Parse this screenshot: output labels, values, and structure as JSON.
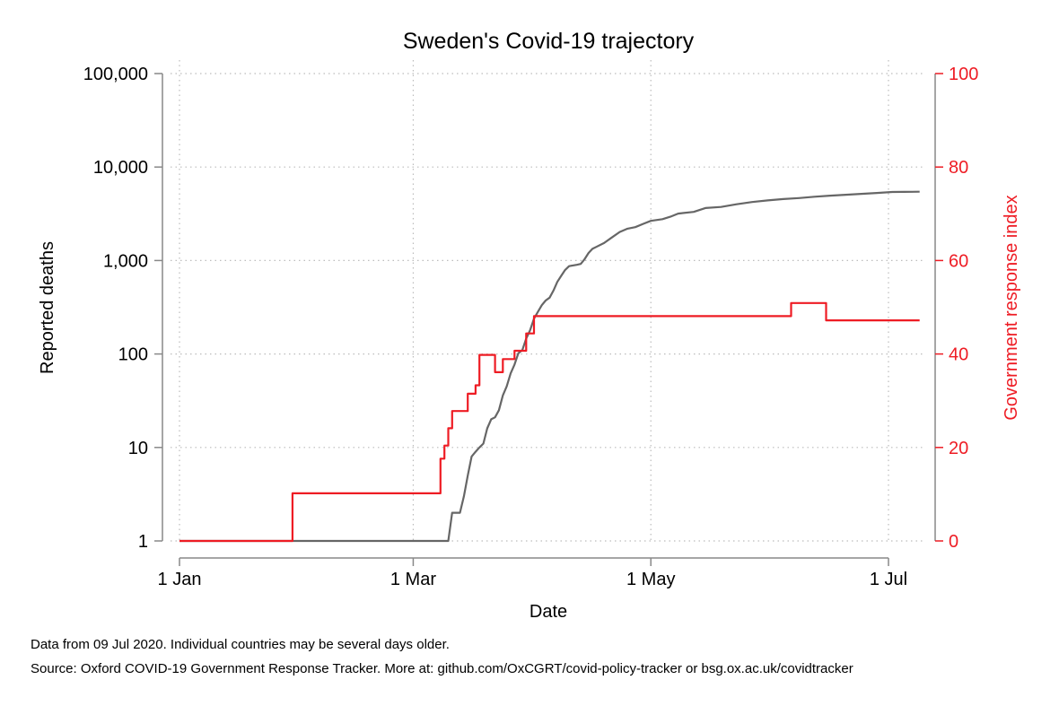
{
  "chart_data": {
    "type": "line",
    "title": "Sweden's Covid-19 trajectory",
    "xlabel": "Date",
    "ylabel": "Reported deaths",
    "ylabel_right": "Government response index",
    "x_ticks": [
      "1 Jan",
      "1 Mar",
      "1 May",
      "1 Jul"
    ],
    "x_tick_dates": [
      "2020-01-01",
      "2020-03-01",
      "2020-05-01",
      "2020-07-01"
    ],
    "x_range": [
      "2020-01-01",
      "2020-07-09"
    ],
    "y_left_scale": "log",
    "y_left_range": [
      1,
      100000
    ],
    "y_left_ticks": [
      1,
      10,
      100,
      1000,
      10000,
      100000
    ],
    "y_left_tick_labels": [
      "1",
      "10",
      "100",
      "1,000",
      "10,000",
      "100,000"
    ],
    "y_right_range": [
      0,
      100
    ],
    "y_right_ticks": [
      0,
      20,
      40,
      60,
      80,
      100
    ],
    "y_right_tick_labels": [
      "0",
      "20",
      "40",
      "60",
      "80",
      "100"
    ],
    "grid": "dotted",
    "series": [
      {
        "axis": "left",
        "color": "#666666",
        "points": [
          [
            "2020-01-01",
            1
          ],
          [
            "2020-03-10",
            1
          ],
          [
            "2020-03-11",
            2
          ],
          [
            "2020-03-13",
            2
          ],
          [
            "2020-03-14",
            3
          ],
          [
            "2020-03-15",
            5
          ],
          [
            "2020-03-16",
            8
          ],
          [
            "2020-03-17",
            9
          ],
          [
            "2020-03-18",
            10
          ],
          [
            "2020-03-19",
            11
          ],
          [
            "2020-03-20",
            16
          ],
          [
            "2020-03-21",
            20
          ],
          [
            "2020-03-22",
            21
          ],
          [
            "2020-03-23",
            25
          ],
          [
            "2020-03-24",
            36
          ],
          [
            "2020-03-25",
            45
          ],
          [
            "2020-03-26",
            62
          ],
          [
            "2020-03-27",
            77
          ],
          [
            "2020-03-28",
            102
          ],
          [
            "2020-03-29",
            110
          ],
          [
            "2020-03-30",
            146
          ],
          [
            "2020-03-31",
            180
          ],
          [
            "2020-04-01",
            239
          ],
          [
            "2020-04-02",
            282
          ],
          [
            "2020-04-03",
            333
          ],
          [
            "2020-04-04",
            373
          ],
          [
            "2020-04-05",
            401
          ],
          [
            "2020-04-06",
            477
          ],
          [
            "2020-04-07",
            591
          ],
          [
            "2020-04-08",
            687
          ],
          [
            "2020-04-09",
            793
          ],
          [
            "2020-04-10",
            870
          ],
          [
            "2020-04-12",
            899
          ],
          [
            "2020-04-13",
            919
          ],
          [
            "2020-04-14",
            1033
          ],
          [
            "2020-04-15",
            1203
          ],
          [
            "2020-04-16",
            1333
          ],
          [
            "2020-04-17",
            1400
          ],
          [
            "2020-04-19",
            1540
          ],
          [
            "2020-04-21",
            1765
          ],
          [
            "2020-04-23",
            2021
          ],
          [
            "2020-04-25",
            2192
          ],
          [
            "2020-04-27",
            2274
          ],
          [
            "2020-04-29",
            2462
          ],
          [
            "2020-05-01",
            2653
          ],
          [
            "2020-05-04",
            2769
          ],
          [
            "2020-05-06",
            2941
          ],
          [
            "2020-05-08",
            3175
          ],
          [
            "2020-05-12",
            3313
          ],
          [
            "2020-05-15",
            3646
          ],
          [
            "2020-05-19",
            3743
          ],
          [
            "2020-05-23",
            3998
          ],
          [
            "2020-05-27",
            4220
          ],
          [
            "2020-05-31",
            4395
          ],
          [
            "2020-06-04",
            4542
          ],
          [
            "2020-06-08",
            4659
          ],
          [
            "2020-06-12",
            4814
          ],
          [
            "2020-06-16",
            4939
          ],
          [
            "2020-06-20",
            5053
          ],
          [
            "2020-06-24",
            5161
          ],
          [
            "2020-06-28",
            5280
          ],
          [
            "2020-07-02",
            5411
          ],
          [
            "2020-07-05",
            5420
          ],
          [
            "2020-07-09",
            5447
          ]
        ]
      },
      {
        "axis": "right",
        "color": "#ee1c24",
        "steps": [
          [
            "2020-01-01",
            0
          ],
          [
            "2020-01-30",
            10.2
          ],
          [
            "2020-03-08",
            17.6
          ],
          [
            "2020-03-09",
            20.4
          ],
          [
            "2020-03-10",
            24.1
          ],
          [
            "2020-03-11",
            27.8
          ],
          [
            "2020-03-15",
            31.5
          ],
          [
            "2020-03-17",
            33.3
          ],
          [
            "2020-03-18",
            39.8
          ],
          [
            "2020-03-22",
            36.1
          ],
          [
            "2020-03-24",
            38.9
          ],
          [
            "2020-03-27",
            40.7
          ],
          [
            "2020-03-30",
            44.4
          ],
          [
            "2020-04-01",
            48.1
          ],
          [
            "2020-06-06",
            50.9
          ],
          [
            "2020-06-15",
            47.2
          ],
          [
            "2020-07-09",
            47.2
          ]
        ]
      }
    ]
  },
  "footnotes": [
    "Data from 09 Jul 2020. Individual countries may be several days older.",
    "Source: Oxford COVID-19 Government Response Tracker. More at: github.com/OxCGRT/covid-policy-tracker or bsg.ox.ac.uk/covidtracker"
  ]
}
